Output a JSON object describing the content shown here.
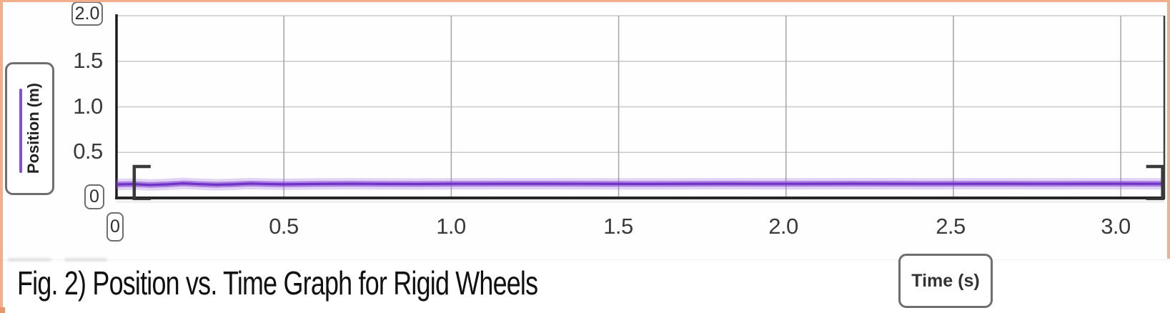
{
  "caption": "Fig. 2) Position vs. Time Graph for Rigid Wheels",
  "chart": {
    "y_axis": {
      "label": "Position (m)",
      "max_label": "2.0",
      "min_label": "0",
      "ticks": [
        "1.5",
        "1.0",
        "0.5"
      ]
    },
    "x_axis": {
      "label": "Time (s)",
      "min_label": "0",
      "ticks": [
        "0.5",
        "1.0",
        "1.5",
        "2.0",
        "2.5",
        "3.0"
      ]
    }
  },
  "colors": {
    "series_purple": "#7d3fd0",
    "series_glow": "#a26ee4",
    "series_core": "#6d2ec4",
    "axis_dark": "#1c1c1c",
    "bracket_gray": "#3a3a3a",
    "grid_h": "#c9c9c9",
    "grid_v": "#aaaaaa",
    "selection_border_orange": "#f1ae8d"
  },
  "chart_data": {
    "type": "line",
    "title": "",
    "xlabel": "Time (s)",
    "ylabel": "Position (m)",
    "xlim": [
      0,
      3.13
    ],
    "ylim": [
      0,
      2.0
    ],
    "xticks": [
      0,
      0.5,
      1.0,
      1.5,
      2.0,
      2.5,
      3.0
    ],
    "yticks": [
      0,
      0.5,
      1.0,
      1.5,
      2.0
    ],
    "grid": true,
    "legend_position": "none",
    "selection_brackets_x": [
      0.053,
      3.125
    ],
    "series": [
      {
        "name": "Position (m)",
        "color": "#7d3fd0",
        "points": [
          [
            0.0,
            0.148
          ],
          [
            0.05,
            0.152
          ],
          [
            0.1,
            0.143
          ],
          [
            0.15,
            0.149
          ],
          [
            0.2,
            0.16
          ],
          [
            0.25,
            0.151
          ],
          [
            0.3,
            0.145
          ],
          [
            0.35,
            0.15
          ],
          [
            0.4,
            0.158
          ],
          [
            0.45,
            0.153
          ],
          [
            0.5,
            0.15
          ],
          [
            0.6,
            0.154
          ],
          [
            0.7,
            0.156
          ],
          [
            0.8,
            0.154
          ],
          [
            0.9,
            0.153
          ],
          [
            1.0,
            0.155
          ],
          [
            1.2,
            0.156
          ],
          [
            1.4,
            0.155
          ],
          [
            1.6,
            0.154
          ],
          [
            1.8,
            0.156
          ],
          [
            2.0,
            0.155
          ],
          [
            2.2,
            0.157
          ],
          [
            2.4,
            0.155
          ],
          [
            2.6,
            0.156
          ],
          [
            2.8,
            0.155
          ],
          [
            3.0,
            0.156
          ],
          [
            3.13,
            0.155
          ]
        ]
      }
    ]
  }
}
